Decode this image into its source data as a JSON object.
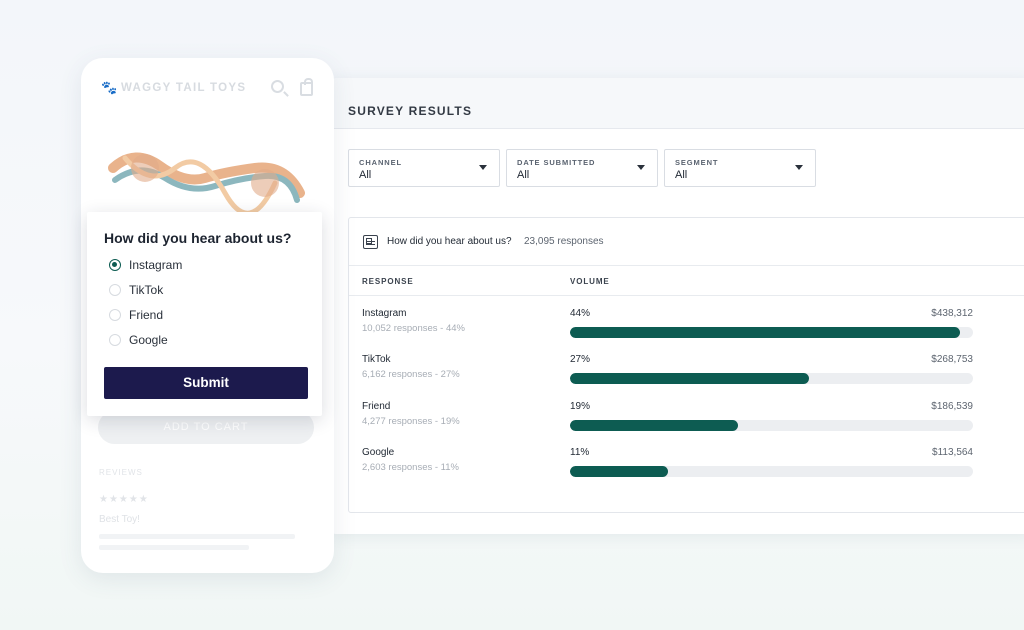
{
  "dashboard": {
    "title": "SURVEY RESULTS",
    "filters": [
      {
        "label": "CHANNEL",
        "value": "All"
      },
      {
        "label": "DATE SUBMITTED",
        "value": "All"
      },
      {
        "label": "SEGMENT",
        "value": "All"
      }
    ],
    "question": {
      "text": "How did you hear about us?",
      "count": "23,095 responses"
    },
    "columns": {
      "response": "RESPONSE",
      "volume": "VOLUME"
    },
    "rows": [
      {
        "name": "Instagram",
        "sub": "10,052 responses - 44%",
        "pct": "44%",
        "fraction": 0.44,
        "amount": "$438,312"
      },
      {
        "name": "TikTok",
        "sub": "6,162 responses - 27%",
        "pct": "27%",
        "fraction": 0.27,
        "amount": "$268,753"
      },
      {
        "name": "Friend",
        "sub": "4,277 responses - 19%",
        "pct": "19%",
        "fraction": 0.19,
        "amount": "$186,539"
      },
      {
        "name": "Google",
        "sub": "2,603 responses - 11%",
        "pct": "11%",
        "fraction": 0.11,
        "amount": "$113,564"
      }
    ],
    "accent": "#0d5c52"
  },
  "phone": {
    "brand": "WAGGY TAIL TOYS",
    "brand_icon": "paw-icon",
    "add_to_cart": "ADD TO CART",
    "reviews_label": "REVIEWS",
    "stars": "★★★★★",
    "review_title": "Best Toy!"
  },
  "survey": {
    "question": "How did you hear about us?",
    "options": [
      {
        "label": "Instagram",
        "selected": true
      },
      {
        "label": "TikTok",
        "selected": false
      },
      {
        "label": "Friend",
        "selected": false
      },
      {
        "label": "Google",
        "selected": false
      }
    ],
    "submit_label": "Submit",
    "submit_color": "#1c1a4d"
  }
}
